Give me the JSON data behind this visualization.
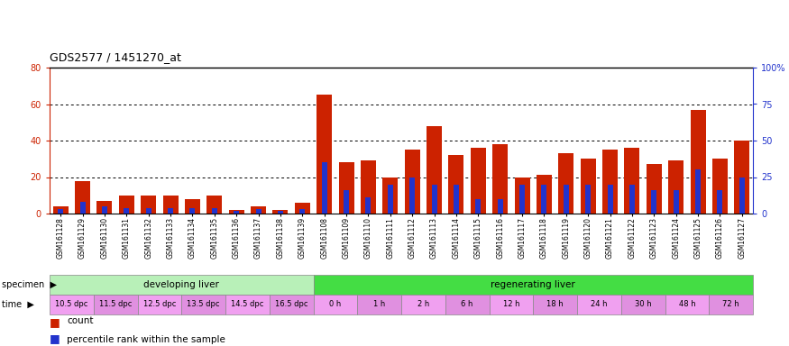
{
  "title": "GDS2577 / 1451270_at",
  "samples": [
    "GSM161128",
    "GSM161129",
    "GSM161130",
    "GSM161131",
    "GSM161132",
    "GSM161133",
    "GSM161134",
    "GSM161135",
    "GSM161136",
    "GSM161137",
    "GSM161138",
    "GSM161139",
    "GSM161108",
    "GSM161109",
    "GSM161110",
    "GSM161111",
    "GSM161112",
    "GSM161113",
    "GSM161114",
    "GSM161115",
    "GSM161116",
    "GSM161117",
    "GSM161118",
    "GSM161119",
    "GSM161120",
    "GSM161121",
    "GSM161122",
    "GSM161123",
    "GSM161124",
    "GSM161125",
    "GSM161126",
    "GSM161127"
  ],
  "count_values": [
    4,
    18,
    7,
    10,
    10,
    10,
    8,
    10,
    2,
    4,
    2,
    6,
    65,
    28,
    29,
    20,
    35,
    48,
    32,
    36,
    38,
    20,
    21,
    33,
    30,
    35,
    36,
    27,
    29,
    57,
    30,
    40
  ],
  "percentile_values": [
    3,
    8,
    5,
    4,
    4,
    4,
    4,
    4,
    2,
    3,
    2,
    3,
    35,
    16,
    11,
    20,
    25,
    20,
    20,
    10,
    10,
    20,
    20,
    20,
    20,
    20,
    20,
    16,
    16,
    30,
    16,
    25
  ],
  "specimen_groups": [
    {
      "label": "developing liver",
      "start": 0,
      "end": 12,
      "color": "#b8f0b8"
    },
    {
      "label": "regenerating liver",
      "start": 12,
      "end": 32,
      "color": "#44dd44"
    }
  ],
  "time_groups": [
    {
      "label": "10.5 dpc",
      "start": 0,
      "end": 2,
      "color": "#f0a0f0"
    },
    {
      "label": "11.5 dpc",
      "start": 2,
      "end": 4,
      "color": "#e090e0"
    },
    {
      "label": "12.5 dpc",
      "start": 4,
      "end": 6,
      "color": "#f0a0f0"
    },
    {
      "label": "13.5 dpc",
      "start": 6,
      "end": 8,
      "color": "#e090e0"
    },
    {
      "label": "14.5 dpc",
      "start": 8,
      "end": 10,
      "color": "#f0a0f0"
    },
    {
      "label": "16.5 dpc",
      "start": 10,
      "end": 12,
      "color": "#e090e0"
    },
    {
      "label": "0 h",
      "start": 12,
      "end": 14,
      "color": "#f0a0f0"
    },
    {
      "label": "1 h",
      "start": 14,
      "end": 16,
      "color": "#e090e0"
    },
    {
      "label": "2 h",
      "start": 16,
      "end": 18,
      "color": "#f0a0f0"
    },
    {
      "label": "6 h",
      "start": 18,
      "end": 20,
      "color": "#e090e0"
    },
    {
      "label": "12 h",
      "start": 20,
      "end": 22,
      "color": "#f0a0f0"
    },
    {
      "label": "18 h",
      "start": 22,
      "end": 24,
      "color": "#e090e0"
    },
    {
      "label": "24 h",
      "start": 24,
      "end": 26,
      "color": "#f0a0f0"
    },
    {
      "label": "30 h",
      "start": 26,
      "end": 28,
      "color": "#e090e0"
    },
    {
      "label": "48 h",
      "start": 28,
      "end": 30,
      "color": "#f0a0f0"
    },
    {
      "label": "72 h",
      "start": 30,
      "end": 32,
      "color": "#e090e0"
    }
  ],
  "bar_color": "#cc2200",
  "percentile_color": "#2233cc",
  "ylim_left": [
    0,
    80
  ],
  "ylim_right": [
    0,
    100
  ],
  "yticks_left": [
    0,
    20,
    40,
    60,
    80
  ],
  "yticks_right": [
    0,
    25,
    50,
    75,
    100
  ],
  "ytick_labels_right": [
    "0",
    "25",
    "50",
    "75",
    "100%"
  ],
  "legend_count": "count",
  "legend_pct": "percentile rank within the sample",
  "bg_color": "#ffffff",
  "title_fontsize": 9,
  "tick_fontsize": 7,
  "sample_fontsize": 5.5
}
